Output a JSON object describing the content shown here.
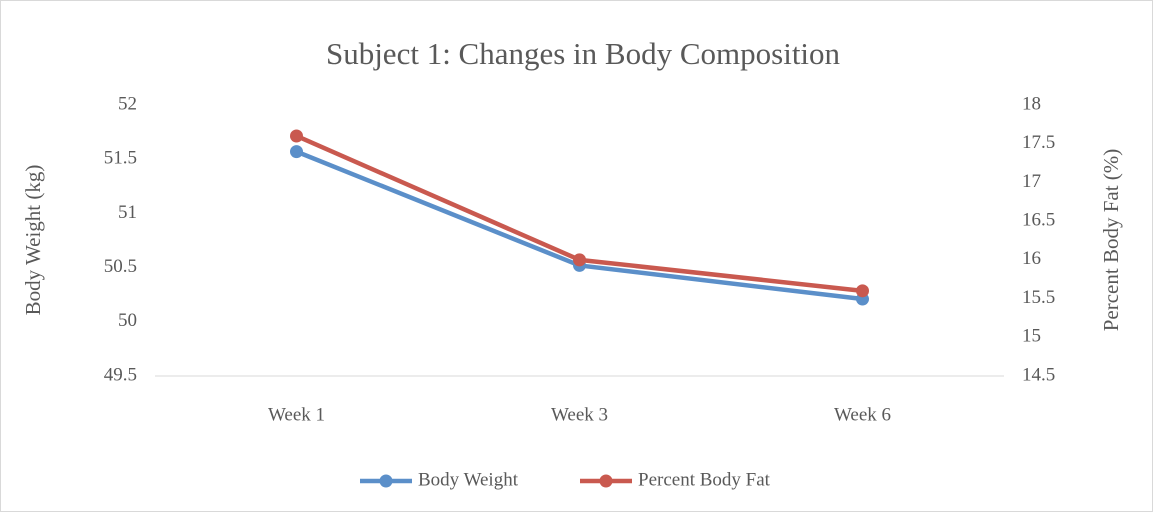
{
  "chart_data": {
    "type": "line",
    "title": "Subject 1: Changes in Body Composition",
    "y_label": "Body Weight (kg)",
    "y2_label": "Percent Body Fat (%)",
    "categories": [
      "Week 1",
      "Week 3",
      "Week 6"
    ],
    "series": [
      {
        "name": "Body Weight",
        "color": "#5b8fc9",
        "values": [
          51.57,
          50.52,
          50.21
        ]
      },
      {
        "name": "Percent Body Fat",
        "color": "#c9594f",
        "values": [
          17.6,
          16.0,
          15.6
        ],
        "axis": "y2"
      }
    ],
    "ylim": [
      49.5,
      52
    ],
    "yticks": [
      49.5,
      50,
      50.5,
      51,
      51.5,
      52
    ],
    "y2lim": [
      14.5,
      18
    ],
    "y2ticks": [
      14.5,
      15,
      15.5,
      16,
      16.5,
      17,
      17.5,
      18
    ],
    "grid": false,
    "legend": "bottom"
  }
}
